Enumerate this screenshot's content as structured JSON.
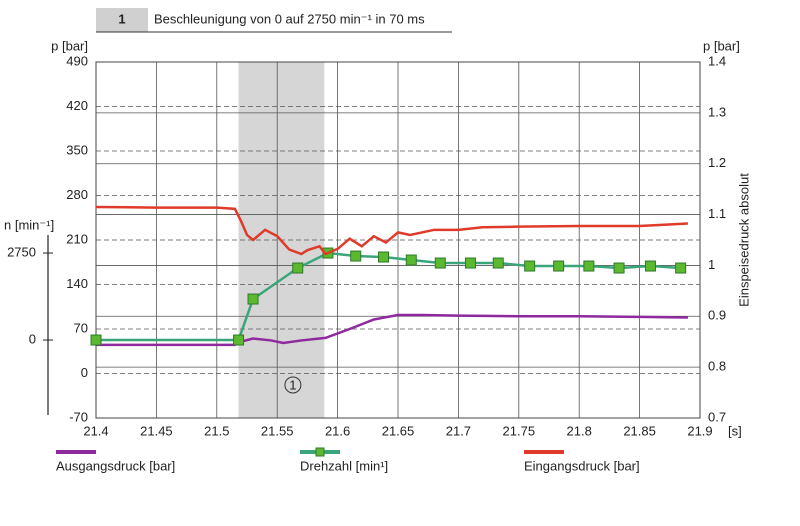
{
  "chart_data": {
    "type": "line",
    "header_number": "1",
    "title": "Beschleunigung von 0 auf 2750 min⁻¹ in 70 ms",
    "xlabel": "[s]",
    "ylabel": "p [bar]",
    "y2label": "p [bar]",
    "y2title": "Einspeisedruck absolut",
    "y3label": "n [min⁻¹]",
    "xlim": [
      21.4,
      21.9
    ],
    "xticks": [
      21.4,
      21.45,
      21.5,
      21.55,
      21.6,
      21.65,
      21.7,
      21.75,
      21.8,
      21.85,
      21.9
    ],
    "ylim": [
      -70,
      490
    ],
    "yticks": [
      -70,
      0,
      70,
      140,
      210,
      280,
      350,
      420,
      490
    ],
    "y2lim": [
      0.7,
      1.4
    ],
    "y2ticks": [
      0.7,
      0.8,
      0.9,
      1,
      1.1,
      1.2,
      1.3,
      1.4
    ],
    "y3lim": [
      -2370,
      3320
    ],
    "y3ticks": [
      0,
      2750
    ],
    "grid": true,
    "highlight": [
      21.518,
      21.589
    ],
    "annotation": {
      "text": "1",
      "x": 21.563,
      "y": -18
    },
    "series": [
      {
        "name": "Ausgangsdruck [bar]",
        "color": "#8e2a9e",
        "axis": "y",
        "x": [
          21.4,
          21.515,
          21.52,
          21.53,
          21.545,
          21.555,
          21.57,
          21.59,
          21.61,
          21.63,
          21.65,
          21.67,
          21.7,
          21.75,
          21.8,
          21.85,
          21.89
        ],
        "values": [
          45,
          45,
          50,
          55,
          52,
          48,
          52,
          56,
          70,
          85,
          92,
          92,
          91,
          90,
          90,
          89,
          88
        ]
      },
      {
        "name": "Drehzahl [min¹]",
        "color": "#3aa57a",
        "marker_color": "#5cb82e",
        "axis": "y3",
        "x": [
          21.4,
          21.518,
          21.53,
          21.567,
          21.592,
          21.615,
          21.638,
          21.661,
          21.685,
          21.71,
          21.733,
          21.759,
          21.783,
          21.808,
          21.833,
          21.859,
          21.884
        ],
        "values": [
          0,
          0,
          1296,
          2276,
          2750,
          2655,
          2624,
          2529,
          2434,
          2434,
          2434,
          2339,
          2339,
          2339,
          2276,
          2339,
          2276
        ]
      },
      {
        "name": "Eingangsdruck [bar]",
        "color": "#e03a2a",
        "axis": "y",
        "x": [
          21.4,
          21.45,
          21.5,
          21.515,
          21.52,
          21.525,
          21.53,
          21.54,
          21.55,
          21.56,
          21.57,
          21.575,
          21.585,
          21.59,
          21.6,
          21.61,
          21.62,
          21.63,
          21.64,
          21.65,
          21.66,
          21.68,
          21.7,
          21.72,
          21.75,
          21.8,
          21.85,
          21.89
        ],
        "values": [
          262,
          261,
          261,
          259,
          240,
          218,
          210,
          226,
          216,
          195,
          188,
          194,
          200,
          188,
          196,
          212,
          200,
          216,
          206,
          222,
          218,
          226,
          226,
          230,
          231,
          232,
          232,
          236
        ]
      }
    ]
  }
}
